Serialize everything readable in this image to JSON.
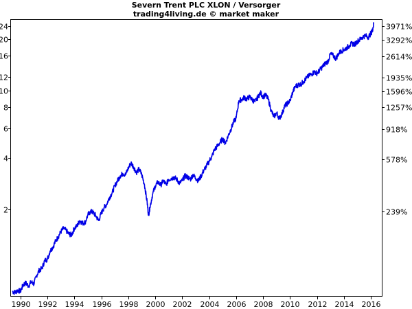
{
  "chart_data": {
    "type": "line",
    "title": "Severn Trent PLC XLON / Versorger",
    "subtitle": "trading4living.de © market maker",
    "y_scale": "log",
    "xlim": [
      1989.3,
      2016.8
    ],
    "ylim": [
      0.62,
      26
    ],
    "x_ticks": [
      {
        "value": 1990,
        "label": "1990"
      },
      {
        "value": 1992,
        "label": "1992"
      },
      {
        "value": 1994,
        "label": "1994"
      },
      {
        "value": 1996,
        "label": "1996"
      },
      {
        "value": 1998,
        "label": "1998"
      },
      {
        "value": 2000,
        "label": "2000"
      },
      {
        "value": 2002,
        "label": "2002"
      },
      {
        "value": 2004,
        "label": "2004"
      },
      {
        "value": 2006,
        "label": "2006"
      },
      {
        "value": 2008,
        "label": "2008"
      },
      {
        "value": 2010,
        "label": "2010"
      },
      {
        "value": 2012,
        "label": "2012"
      },
      {
        "value": 2014,
        "label": "2014"
      },
      {
        "value": 2016,
        "label": "2016"
      }
    ],
    "y_ticks_left": [
      {
        "value": 2,
        "label": "2"
      },
      {
        "value": 4,
        "label": "4"
      },
      {
        "value": 6,
        "label": "6"
      },
      {
        "value": 8,
        "label": "8"
      },
      {
        "value": 10,
        "label": "10"
      },
      {
        "value": 12,
        "label": "12"
      },
      {
        "value": 16,
        "label": "16"
      },
      {
        "value": 20,
        "label": "20"
      },
      {
        "value": 24,
        "label": "24"
      }
    ],
    "y_ticks_right": [
      {
        "value": 1.95,
        "label": "239%"
      },
      {
        "value": 3.95,
        "label": "578%"
      },
      {
        "value": 5.95,
        "label": "918%"
      },
      {
        "value": 7.95,
        "label": "1257%"
      },
      {
        "value": 9.9,
        "label": "1596%"
      },
      {
        "value": 11.9,
        "label": "1935%"
      },
      {
        "value": 15.9,
        "label": "2614%"
      },
      {
        "value": 19.9,
        "label": "3292%"
      },
      {
        "value": 23.9,
        "label": "3971%"
      }
    ],
    "series": [
      {
        "color": "#0000e6",
        "x": [
          1989.4,
          1989.6,
          1989.8,
          1990.0,
          1990.2,
          1990.4,
          1990.6,
          1990.8,
          1991.0,
          1991.2,
          1991.4,
          1991.6,
          1991.8,
          1992.0,
          1992.2,
          1992.4,
          1992.6,
          1992.8,
          1993.0,
          1993.2,
          1993.4,
          1993.6,
          1993.8,
          1994.0,
          1994.2,
          1994.4,
          1994.6,
          1994.8,
          1995.0,
          1995.2,
          1995.4,
          1995.6,
          1995.8,
          1996.0,
          1996.2,
          1996.4,
          1996.6,
          1996.8,
          1997.0,
          1997.2,
          1997.4,
          1997.6,
          1997.8,
          1998.0,
          1998.2,
          1998.4,
          1998.6,
          1998.8,
          1999.0,
          1999.2,
          1999.4,
          1999.5,
          1999.6,
          1999.8,
          2000.0,
          2000.2,
          2000.4,
          2000.6,
          2000.8,
          2001.0,
          2001.2,
          2001.4,
          2001.6,
          2001.8,
          2002.0,
          2002.2,
          2002.4,
          2002.6,
          2002.8,
          2003.0,
          2003.2,
          2003.4,
          2003.6,
          2003.8,
          2004.0,
          2004.2,
          2004.4,
          2004.6,
          2004.8,
          2005.0,
          2005.2,
          2005.4,
          2005.6,
          2005.8,
          2006.0,
          2006.2,
          2006.4,
          2006.6,
          2006.8,
          2007.0,
          2007.2,
          2007.4,
          2007.6,
          2007.8,
          2008.0,
          2008.2,
          2008.4,
          2008.6,
          2008.8,
          2009.0,
          2009.2,
          2009.4,
          2009.6,
          2009.8,
          2010.0,
          2010.2,
          2010.4,
          2010.6,
          2010.8,
          2011.0,
          2011.2,
          2011.4,
          2011.6,
          2011.8,
          2012.0,
          2012.2,
          2012.4,
          2012.6,
          2012.8,
          2013.0,
          2013.2,
          2013.4,
          2013.6,
          2013.8,
          2014.0,
          2014.2,
          2014.4,
          2014.6,
          2014.8,
          2015.0,
          2015.2,
          2015.4,
          2015.6,
          2015.8,
          2016.0,
          2016.1,
          2016.2
        ],
        "y": [
          0.66,
          0.65,
          0.67,
          0.66,
          0.72,
          0.74,
          0.71,
          0.75,
          0.73,
          0.82,
          0.88,
          0.9,
          1.0,
          1.02,
          1.14,
          1.2,
          1.3,
          1.38,
          1.48,
          1.55,
          1.5,
          1.43,
          1.42,
          1.55,
          1.6,
          1.72,
          1.66,
          1.68,
          1.85,
          1.95,
          1.92,
          1.83,
          1.72,
          1.9,
          2.05,
          2.15,
          2.35,
          2.5,
          2.75,
          2.95,
          3.15,
          3.25,
          3.2,
          3.5,
          3.75,
          3.55,
          3.3,
          3.45,
          3.2,
          2.8,
          2.2,
          1.85,
          2.05,
          2.45,
          2.75,
          2.9,
          2.78,
          2.95,
          2.8,
          3.0,
          3.05,
          3.1,
          3.0,
          2.85,
          2.95,
          3.15,
          3.1,
          3.0,
          3.2,
          3.05,
          2.95,
          3.15,
          3.4,
          3.6,
          3.85,
          4.1,
          4.5,
          4.7,
          4.95,
          5.2,
          4.9,
          5.4,
          5.9,
          6.5,
          6.9,
          8.7,
          8.85,
          9.1,
          8.9,
          9.2,
          8.8,
          8.6,
          9.1,
          9.7,
          9.2,
          9.4,
          8.8,
          7.6,
          7.0,
          7.4,
          6.85,
          7.3,
          8.1,
          8.4,
          8.7,
          9.8,
          10.6,
          10.8,
          10.9,
          11.3,
          11.8,
          12.2,
          12.5,
          12.9,
          12.6,
          13.2,
          13.8,
          14.4,
          14.8,
          16.4,
          16.0,
          15.4,
          16.5,
          17.1,
          17.4,
          17.8,
          18.4,
          18.9,
          18.7,
          19.5,
          20.0,
          20.7,
          21.0,
          20.6,
          21.7,
          22.5,
          24.6
        ]
      }
    ]
  }
}
